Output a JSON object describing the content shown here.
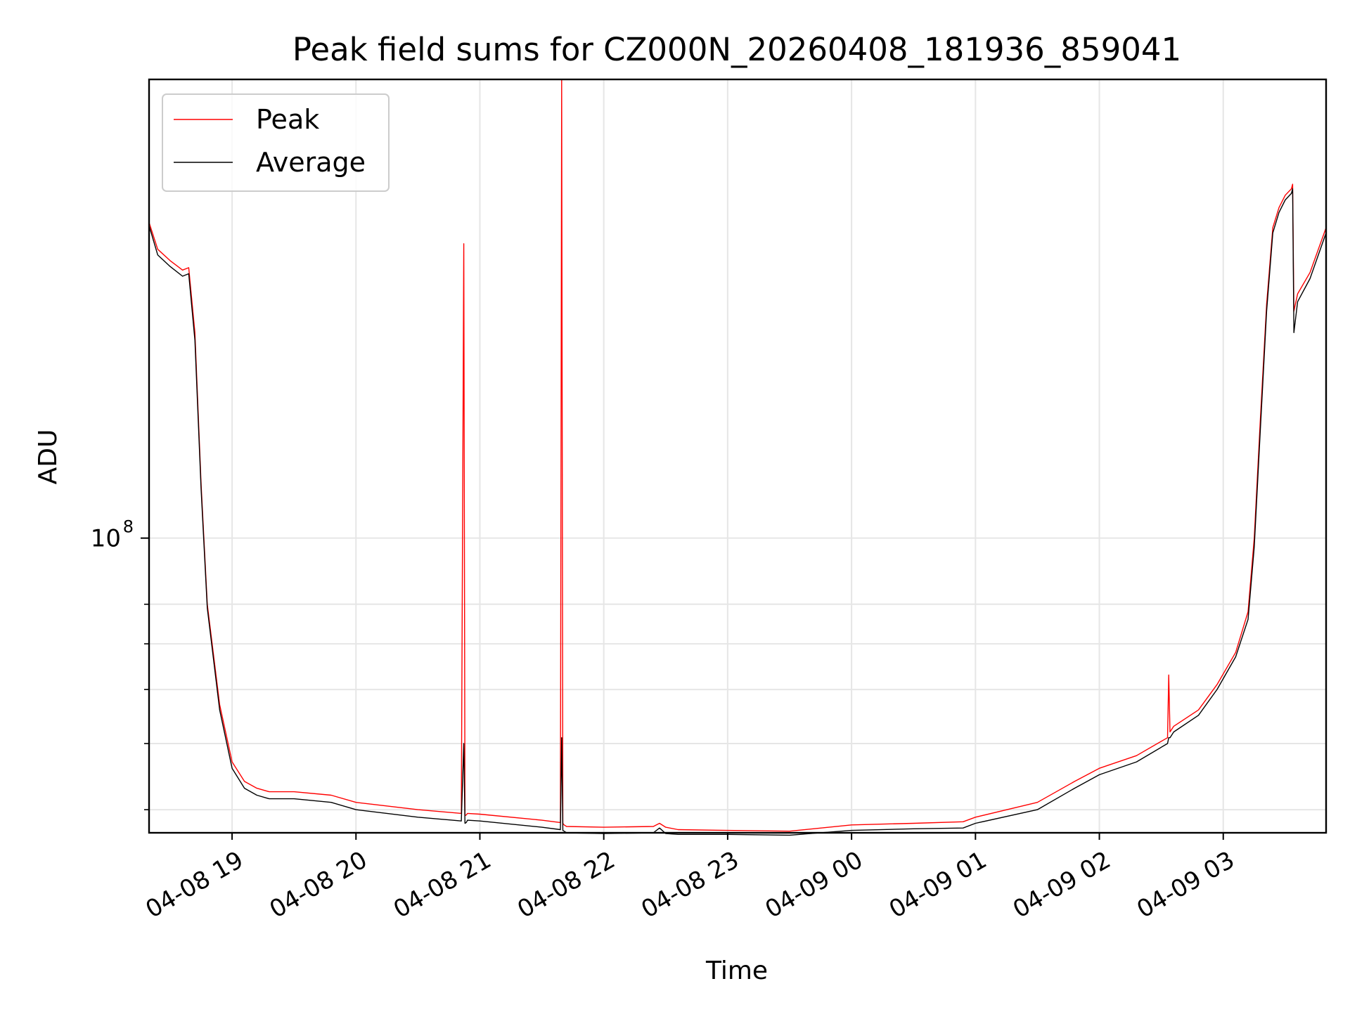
{
  "chart_data": {
    "type": "line",
    "title": "Peak field sums for CZ000N_20260408_181936_859041",
    "xlabel": "Time",
    "ylabel": "ADU",
    "y_scale": "log",
    "ylim": [
      37000000,
      470000000
    ],
    "xlim_hours": [
      18.33,
      27.83
    ],
    "grid": true,
    "legend_position": "top-left",
    "x_ticks": [
      {
        "label": "04-08 19",
        "hour": 19
      },
      {
        "label": "04-08 20",
        "hour": 20
      },
      {
        "label": "04-08 21",
        "hour": 21
      },
      {
        "label": "04-08 22",
        "hour": 22
      },
      {
        "label": "04-08 23",
        "hour": 23
      },
      {
        "label": "04-09 00",
        "hour": 24
      },
      {
        "label": "04-09 01",
        "hour": 25
      },
      {
        "label": "04-09 02",
        "hour": 26
      },
      {
        "label": "04-09 03",
        "hour": 27
      }
    ],
    "y_ticks": [
      {
        "label": "10",
        "exponent": "8",
        "value": 100000000
      }
    ],
    "y_minor_ticks": [
      40000000,
      50000000,
      60000000,
      70000000,
      80000000
    ],
    "series": [
      {
        "name": "Peak",
        "color": "#ff0000",
        "hours": [
          18.33,
          18.4,
          18.5,
          18.6,
          18.65,
          18.7,
          18.75,
          18.8,
          18.9,
          19.0,
          19.1,
          19.2,
          19.3,
          19.5,
          19.8,
          20.0,
          20.5,
          20.85,
          20.87,
          20.88,
          20.89,
          20.9,
          21.0,
          21.5,
          21.65,
          21.66,
          21.67,
          21.68,
          21.7,
          22.0,
          22.4,
          22.45,
          22.5,
          22.6,
          23.0,
          23.5,
          24.0,
          24.5,
          24.9,
          25.0,
          25.5,
          25.8,
          26.0,
          26.3,
          26.55,
          26.56,
          26.57,
          26.6,
          26.8,
          26.95,
          27.1,
          27.2,
          27.25,
          27.3,
          27.35,
          27.4,
          27.45,
          27.5,
          27.55,
          27.56,
          27.57,
          27.6,
          27.7,
          27.83
        ],
        "values": [
          290000000,
          265000000,
          255000000,
          247000000,
          249000000,
          200000000,
          120000000,
          80000000,
          57000000,
          47000000,
          44000000,
          43000000,
          42500000,
          42500000,
          42000000,
          41000000,
          40000000,
          39500000,
          270000000,
          39200000,
          39300000,
          39500000,
          39400000,
          38600000,
          38300000,
          470000000,
          38200000,
          38000000,
          37800000,
          37700000,
          37800000,
          38200000,
          37700000,
          37400000,
          37300000,
          37200000,
          38000000,
          38200000,
          38400000,
          39000000,
          41000000,
          44000000,
          46000000,
          48000000,
          51000000,
          63000000,
          52000000,
          53000000,
          56000000,
          61000000,
          68000000,
          78000000,
          100000000,
          150000000,
          220000000,
          285000000,
          305000000,
          318000000,
          325000000,
          330000000,
          215000000,
          228000000,
          245000000,
          285000000
        ]
      },
      {
        "name": "Average",
        "color": "#000000",
        "hours": [
          18.33,
          18.4,
          18.5,
          18.6,
          18.65,
          18.7,
          18.75,
          18.8,
          18.9,
          19.0,
          19.1,
          19.2,
          19.3,
          19.5,
          19.8,
          20.0,
          20.5,
          20.85,
          20.87,
          20.88,
          20.89,
          20.9,
          21.0,
          21.5,
          21.65,
          21.66,
          21.67,
          21.68,
          21.7,
          22.0,
          22.4,
          22.45,
          22.5,
          22.6,
          23.0,
          23.5,
          24.0,
          24.5,
          24.9,
          25.0,
          25.5,
          25.8,
          26.0,
          26.3,
          26.55,
          26.56,
          26.57,
          26.6,
          26.8,
          26.95,
          27.1,
          27.2,
          27.25,
          27.3,
          27.35,
          27.4,
          27.45,
          27.5,
          27.55,
          27.56,
          27.57,
          27.6,
          27.7,
          27.83
        ],
        "values": [
          287000000,
          260000000,
          250000000,
          242000000,
          244000000,
          195000000,
          118000000,
          79000000,
          56000000,
          46000000,
          43000000,
          42000000,
          41500000,
          41500000,
          41000000,
          40000000,
          39000000,
          38500000,
          50000000,
          38200000,
          38300000,
          38600000,
          38500000,
          37700000,
          37400000,
          51000000,
          37300000,
          37200000,
          37000000,
          36900000,
          37000000,
          37600000,
          36900000,
          36800000,
          36800000,
          36700000,
          37300000,
          37500000,
          37600000,
          38200000,
          40000000,
          43000000,
          45000000,
          47000000,
          50000000,
          51000000,
          51000000,
          52000000,
          55000000,
          60000000,
          67000000,
          76000000,
          97000000,
          145000000,
          215000000,
          280000000,
          300000000,
          313000000,
          320000000,
          325000000,
          200000000,
          222000000,
          240000000,
          280000000
        ]
      }
    ]
  }
}
